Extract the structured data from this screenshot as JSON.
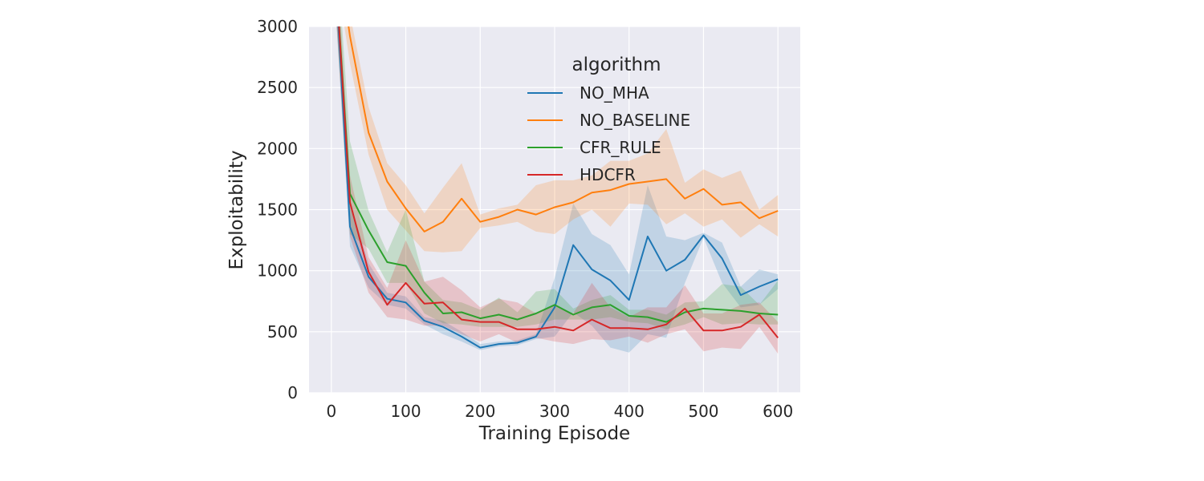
{
  "chart_data": {
    "type": "line",
    "xlabel": "Training Episode",
    "ylabel": "Exploitability",
    "xlim": [
      -30,
      630
    ],
    "ylim": [
      0,
      3000
    ],
    "xticks": [
      0,
      100,
      200,
      300,
      400,
      500,
      600
    ],
    "yticks": [
      0,
      500,
      1000,
      1500,
      2000,
      2500,
      3000
    ],
    "grid": true,
    "background": "#eaeaf2",
    "legend": {
      "title": "algorithm",
      "placement": "upper-center"
    },
    "series": [
      {
        "name": "NO_MHA",
        "color": "#1f77b4",
        "x": [
          0,
          25,
          50,
          75,
          100,
          125,
          150,
          175,
          200,
          225,
          250,
          275,
          300,
          325,
          350,
          375,
          400,
          425,
          450,
          475,
          500,
          525,
          550,
          575,
          600
        ],
        "y": [
          4000,
          1360,
          950,
          770,
          740,
          590,
          540,
          460,
          370,
          400,
          410,
          460,
          700,
          1210,
          1010,
          920,
          760,
          1280,
          1000,
          1090,
          1290,
          1100,
          800,
          870,
          930
        ],
        "lower": [
          3700,
          1200,
          860,
          720,
          690,
          560,
          480,
          420,
          350,
          380,
          390,
          440,
          460,
          660,
          550,
          370,
          330,
          480,
          450,
          900,
          1270,
          900,
          700,
          720,
          850
        ],
        "upper": [
          4300,
          1560,
          1060,
          820,
          790,
          620,
          590,
          500,
          400,
          420,
          430,
          480,
          940,
          1550,
          1300,
          1210,
          970,
          1700,
          1280,
          1250,
          1310,
          1230,
          870,
          1010,
          970
        ]
      },
      {
        "name": "NO_BASELINE",
        "color": "#ff7f0e",
        "x": [
          0,
          25,
          50,
          75,
          100,
          125,
          150,
          175,
          200,
          225,
          250,
          275,
          300,
          325,
          350,
          375,
          400,
          425,
          450,
          475,
          500,
          525,
          550,
          575,
          600
        ],
        "y": [
          4000,
          2920,
          2130,
          1730,
          1510,
          1320,
          1400,
          1590,
          1400,
          1440,
          1500,
          1460,
          1520,
          1560,
          1640,
          1660,
          1710,
          1730,
          1750,
          1590,
          1670,
          1540,
          1560,
          1430,
          1490
        ],
        "lower": [
          3700,
          2700,
          1950,
          1500,
          1330,
          1160,
          1150,
          1160,
          1350,
          1370,
          1400,
          1320,
          1300,
          1420,
          1500,
          1360,
          1550,
          1540,
          1380,
          1470,
          1360,
          1420,
          1270,
          1380,
          1280
        ],
        "upper": [
          4300,
          3100,
          2340,
          1880,
          1700,
          1470,
          1680,
          1880,
          1460,
          1510,
          1540,
          1700,
          1740,
          1740,
          1780,
          1900,
          1900,
          1960,
          2160,
          1720,
          1830,
          1760,
          1820,
          1500,
          1620
        ]
      },
      {
        "name": "CFR_RULE",
        "color": "#2ca02c",
        "x": [
          0,
          25,
          50,
          75,
          100,
          125,
          150,
          175,
          200,
          225,
          250,
          275,
          300,
          325,
          350,
          375,
          400,
          425,
          450,
          475,
          500,
          525,
          550,
          575,
          600
        ],
        "y": [
          4000,
          1630,
          1330,
          1070,
          1040,
          820,
          650,
          660,
          610,
          640,
          600,
          650,
          720,
          640,
          700,
          720,
          630,
          620,
          580,
          660,
          690,
          680,
          670,
          650,
          640
        ],
        "lower": [
          3700,
          1300,
          1180,
          900,
          900,
          650,
          570,
          560,
          540,
          540,
          540,
          560,
          600,
          600,
          600,
          620,
          580,
          570,
          520,
          560,
          620,
          560,
          570,
          560,
          560
        ],
        "upper": [
          4300,
          2060,
          1490,
          1150,
          1500,
          910,
          760,
          740,
          680,
          780,
          660,
          830,
          850,
          690,
          760,
          800,
          680,
          680,
          640,
          740,
          750,
          890,
          870,
          720,
          920
        ]
      },
      {
        "name": "HDCFR",
        "color": "#d62728",
        "x": [
          0,
          25,
          50,
          75,
          100,
          125,
          150,
          175,
          200,
          225,
          250,
          275,
          300,
          325,
          350,
          375,
          400,
          425,
          450,
          475,
          500,
          525,
          550,
          575,
          600
        ],
        "y": [
          4000,
          1560,
          990,
          720,
          900,
          730,
          740,
          600,
          580,
          580,
          520,
          520,
          540,
          510,
          600,
          530,
          530,
          520,
          560,
          690,
          510,
          510,
          540,
          640,
          450
        ],
        "lower": [
          3700,
          1280,
          820,
          620,
          600,
          550,
          550,
          480,
          420,
          480,
          410,
          450,
          420,
          400,
          440,
          430,
          460,
          410,
          480,
          520,
          340,
          370,
          360,
          540,
          320
        ],
        "upper": [
          4300,
          1780,
          1110,
          860,
          1250,
          910,
          950,
          840,
          700,
          770,
          740,
          650,
          720,
          650,
          900,
          700,
          620,
          700,
          700,
          880,
          650,
          650,
          720,
          740,
          580
        ]
      }
    ]
  }
}
